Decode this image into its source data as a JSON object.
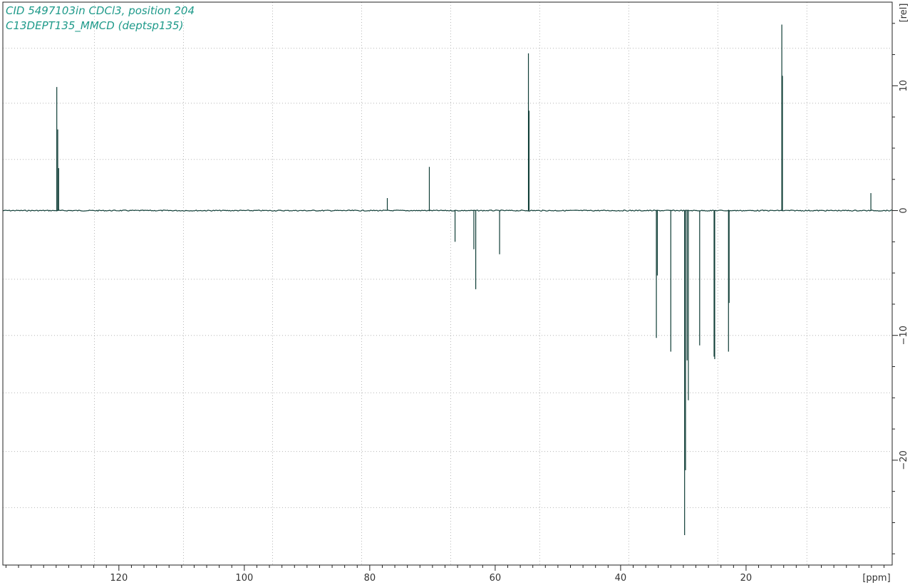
{
  "header": {
    "line1": "CID 5497103in CDCl3, position 204",
    "line2": "C13DEPT135_MMCD (deptsp135)"
  },
  "colors": {
    "trace": "#0f3d36",
    "title": "#1f9a8a",
    "grid": "#b5b5b5",
    "frame": "#222222"
  },
  "chart_data": {
    "type": "line",
    "title": "",
    "xlabel": "[ppm]",
    "ylabel": "[rel]",
    "x_reversed": true,
    "xlim": [
      138.5,
      -3.3
    ],
    "ylim": [
      -28.4,
      16.7
    ],
    "x_major_ticks": [
      120,
      100,
      80,
      60,
      40,
      20
    ],
    "x_minor_step": 2,
    "x_grid_step": 14.2,
    "x_grid_start": 123.9,
    "y_major_ticks": [
      10,
      0,
      -10,
      -20
    ],
    "y_minor_step": 2.5,
    "y_grid": [
      13.0,
      8.6,
      4.1,
      -5.5,
      -10.0,
      -14.6,
      -19.3,
      -23.8
    ],
    "grid": true,
    "series": [
      {
        "peaks": [
          {
            "ppm": 129.9,
            "intensity": 9.9
          },
          {
            "ppm": 129.75,
            "intensity": 6.5
          },
          {
            "ppm": 129.6,
            "intensity": 3.4
          },
          {
            "ppm": 77.2,
            "intensity": 1.0
          },
          {
            "ppm": 70.5,
            "intensity": 3.5
          },
          {
            "ppm": 66.4,
            "intensity": -2.5
          },
          {
            "ppm": 63.4,
            "intensity": -3.1
          },
          {
            "ppm": 63.1,
            "intensity": -6.3
          },
          {
            "ppm": 59.3,
            "intensity": -3.5
          },
          {
            "ppm": 54.7,
            "intensity": 12.6
          },
          {
            "ppm": 54.6,
            "intensity": 8.0
          },
          {
            "ppm": 34.3,
            "intensity": -10.2
          },
          {
            "ppm": 34.15,
            "intensity": -5.2
          },
          {
            "ppm": 32.0,
            "intensity": -11.3
          },
          {
            "ppm": 29.8,
            "intensity": -26.0
          },
          {
            "ppm": 29.65,
            "intensity": -20.8
          },
          {
            "ppm": 29.4,
            "intensity": -12.0
          },
          {
            "ppm": 29.2,
            "intensity": -15.2
          },
          {
            "ppm": 27.4,
            "intensity": -10.8
          },
          {
            "ppm": 25.1,
            "intensity": -11.7
          },
          {
            "ppm": 25.0,
            "intensity": -11.9
          },
          {
            "ppm": 22.8,
            "intensity": -11.3
          },
          {
            "ppm": 22.7,
            "intensity": -7.4
          },
          {
            "ppm": 14.3,
            "intensity": 14.9
          },
          {
            "ppm": 14.2,
            "intensity": 10.8
          },
          {
            "ppm": 0.1,
            "intensity": 1.4
          }
        ]
      }
    ]
  }
}
